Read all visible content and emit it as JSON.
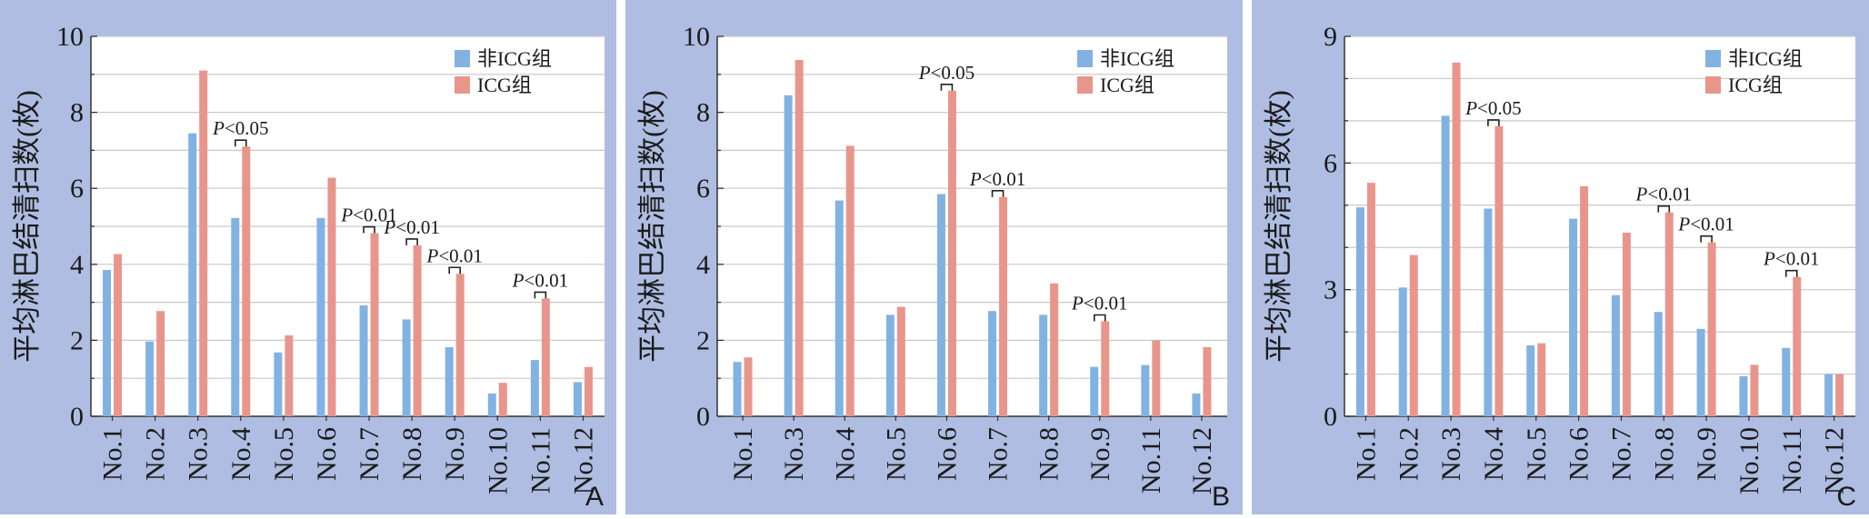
{
  "chart_data": [
    {
      "type": "bar",
      "panel_letter": "A",
      "ylabel": "平均淋巴结清扫数(枚)",
      "ylim": [
        0,
        10
      ],
      "yticks": [
        0,
        2,
        4,
        6,
        8,
        10
      ],
      "grid": true,
      "legend_position": "top-right",
      "categories": [
        "No.1",
        "No.2",
        "No.3",
        "No.4",
        "No.5",
        "No.6",
        "No.7",
        "No.8",
        "No.9",
        "No.10",
        "No.11",
        "No.12"
      ],
      "series": [
        {
          "name": "非ICG组",
          "values": [
            3.85,
            1.97,
            7.45,
            5.22,
            1.68,
            5.22,
            2.92,
            2.55,
            1.82,
            0.6,
            1.48,
            0.9
          ]
        },
        {
          "name": "ICG组",
          "values": [
            4.27,
            2.77,
            9.1,
            7.1,
            2.13,
            6.28,
            4.82,
            4.5,
            3.75,
            0.88,
            3.1,
            1.3
          ]
        }
      ],
      "annotations": [
        {
          "category": "No.4",
          "prefix": "P",
          "text": "<0.05"
        },
        {
          "category": "No.7",
          "prefix": "P",
          "text": "<0.01"
        },
        {
          "category": "No.8",
          "prefix": "P",
          "text": "<0.01"
        },
        {
          "category": "No.9",
          "prefix": "P",
          "text": "<0.01"
        },
        {
          "category": "No.11",
          "prefix": "P",
          "text": "<0.01"
        }
      ]
    },
    {
      "type": "bar",
      "panel_letter": "B",
      "ylabel": "平均淋巴结清扫数(枚)",
      "ylim": [
        0,
        10
      ],
      "yticks": [
        0,
        2,
        4,
        6,
        8,
        10
      ],
      "grid": true,
      "legend_position": "top-right",
      "categories": [
        "No.1",
        "No.3",
        "No.4",
        "No.5",
        "No.6",
        "No.7",
        "No.8",
        "No.9",
        "No.11",
        "No.12"
      ],
      "series": [
        {
          "name": "非ICG组",
          "values": [
            1.43,
            8.45,
            5.68,
            2.67,
            5.85,
            2.77,
            2.67,
            1.3,
            1.35,
            0.6
          ]
        },
        {
          "name": "ICG组",
          "values": [
            1.55,
            9.38,
            7.12,
            2.88,
            8.57,
            5.77,
            3.5,
            2.5,
            2.0,
            1.82
          ]
        }
      ],
      "annotations": [
        {
          "category": "No.6",
          "prefix": "P",
          "text": "<0.05"
        },
        {
          "category": "No.7",
          "prefix": "P",
          "text": "<0.01"
        },
        {
          "category": "No.9",
          "prefix": "P",
          "text": "<0.01"
        }
      ]
    },
    {
      "type": "bar",
      "panel_letter": "C",
      "ylabel": "平均淋巴结清扫数(枚)",
      "ylim": [
        0,
        9
      ],
      "yticks": [
        0,
        3,
        6,
        9
      ],
      "grid": true,
      "legend_position": "top-right",
      "categories": [
        "No.1",
        "No.2",
        "No.3",
        "No.4",
        "No.5",
        "No.6",
        "No.7",
        "No.8",
        "No.9",
        "No.10",
        "No.11",
        "No.12"
      ],
      "series": [
        {
          "name": "非ICG组",
          "values": [
            4.95,
            3.05,
            7.12,
            4.92,
            1.68,
            4.68,
            2.87,
            2.47,
            2.07,
            0.95,
            1.62,
            1.0
          ]
        },
        {
          "name": "ICG组",
          "values": [
            5.53,
            3.82,
            8.38,
            6.87,
            1.73,
            5.45,
            4.35,
            4.83,
            4.12,
            1.22,
            3.3,
            1.0
          ]
        }
      ],
      "annotations": [
        {
          "category": "No.4",
          "prefix": "P",
          "text": "<0.05"
        },
        {
          "category": "No.8",
          "prefix": "P",
          "text": "<0.01"
        },
        {
          "category": "No.9",
          "prefix": "P",
          "text": "<0.01"
        },
        {
          "category": "No.11",
          "prefix": "P",
          "text": "<0.01"
        }
      ]
    }
  ],
  "colors": {
    "panel_bg": "#aebde1",
    "plot_bg": "#ffffff",
    "series_0": "#82b2e2",
    "series_1": "#e8968c",
    "grid": "#c9c9c9",
    "text": "#1a1a1a"
  }
}
